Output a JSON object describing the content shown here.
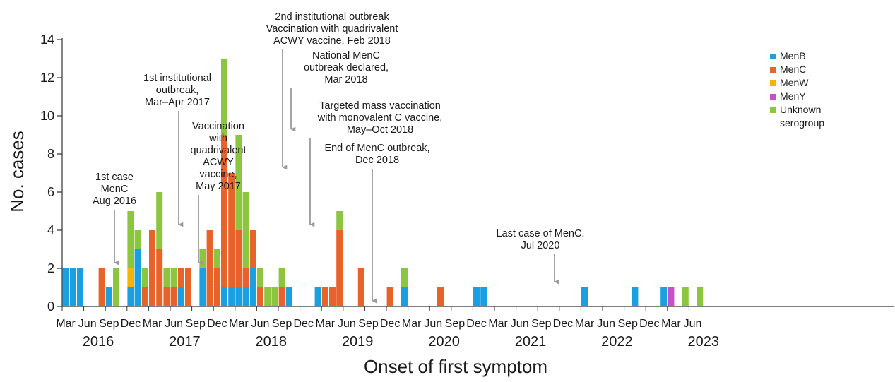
{
  "chart_data": {
    "type": "bar",
    "stacked": true,
    "xlabel": "Onset of first symptom",
    "ylabel": "No. cases",
    "ylim": [
      0,
      14
    ],
    "yticks": [
      0,
      2,
      4,
      6,
      8,
      10,
      12,
      14
    ],
    "x_start": "2016-03",
    "x_end": "2023-07",
    "month_ticks": [
      "Mar",
      "Jun",
      "Sep",
      "Dec",
      "Mar",
      "Jun",
      "Sep",
      "Dec",
      "Mar",
      "Jun",
      "Sep",
      "Dec",
      "Mar",
      "Jun",
      "Sep",
      "Dec",
      "Mar",
      "Jun",
      "Sep",
      "Dec",
      "Mar",
      "Jun",
      "Sep",
      "Dec",
      "Mar",
      "Jun",
      "Sep",
      "Dec",
      "Mar",
      "Jun"
    ],
    "years": [
      "2016",
      "2017",
      "2018",
      "2019",
      "2020",
      "2021",
      "2022",
      "2023"
    ],
    "colors": {
      "MenB": "#1aa0e0",
      "MenC": "#e8632a",
      "MenW": "#f5b400",
      "MenY": "#c94fc8",
      "Unknown": "#8cc63f"
    },
    "series": [
      {
        "key": "MenB",
        "name": "MenB"
      },
      {
        "key": "MenC",
        "name": "MenC"
      },
      {
        "key": "MenW",
        "name": "MenW"
      },
      {
        "key": "MenY",
        "name": "MenY"
      },
      {
        "key": "Unknown",
        "name": "Unknown serogroup"
      }
    ],
    "months": [
      {
        "month": "2016-03",
        "MenB": 2
      },
      {
        "month": "2016-04",
        "MenB": 2
      },
      {
        "month": "2016-05",
        "MenB": 2
      },
      {
        "month": "2016-08",
        "MenC": 2
      },
      {
        "month": "2016-09",
        "MenB": 1
      },
      {
        "month": "2016-10",
        "Unknown": 2
      },
      {
        "month": "2016-12",
        "MenB": 1,
        "MenW": 1,
        "Unknown": 3
      },
      {
        "month": "2017-01",
        "MenB": 3,
        "Unknown": 1
      },
      {
        "month": "2017-02",
        "MenC": 1,
        "Unknown": 1
      },
      {
        "month": "2017-03",
        "MenC": 4
      },
      {
        "month": "2017-04",
        "MenC": 3,
        "Unknown": 3
      },
      {
        "month": "2017-05",
        "MenC": 1,
        "Unknown": 1
      },
      {
        "month": "2017-06",
        "MenC": 1,
        "Unknown": 1
      },
      {
        "month": "2017-07",
        "MenB": 1,
        "MenC": 1
      },
      {
        "month": "2017-08",
        "MenC": 2
      },
      {
        "month": "2017-10",
        "MenB": 2,
        "Unknown": 1
      },
      {
        "month": "2017-11",
        "MenC": 4
      },
      {
        "month": "2017-12",
        "MenC": 2,
        "Unknown": 1
      },
      {
        "month": "2018-01",
        "MenB": 1,
        "MenC": 8,
        "Unknown": 4
      },
      {
        "month": "2018-02",
        "MenB": 1,
        "MenC": 6
      },
      {
        "month": "2018-03",
        "MenB": 1,
        "MenC": 3,
        "Unknown": 5
      },
      {
        "month": "2018-04",
        "MenB": 1,
        "MenC": 1,
        "Unknown": 4
      },
      {
        "month": "2018-05",
        "MenB": 2,
        "MenC": 2
      },
      {
        "month": "2018-06",
        "MenC": 1,
        "Unknown": 1
      },
      {
        "month": "2018-07",
        "Unknown": 1
      },
      {
        "month": "2018-08",
        "Unknown": 1
      },
      {
        "month": "2018-09",
        "MenC": 1,
        "Unknown": 1
      },
      {
        "month": "2018-10",
        "MenB": 1
      },
      {
        "month": "2019-02",
        "MenB": 1
      },
      {
        "month": "2019-03",
        "MenC": 1
      },
      {
        "month": "2019-04",
        "MenC": 1
      },
      {
        "month": "2019-05",
        "MenC": 4,
        "Unknown": 1
      },
      {
        "month": "2019-08",
        "MenC": 2
      },
      {
        "month": "2019-12",
        "MenC": 1
      },
      {
        "month": "2020-02",
        "MenB": 1,
        "Unknown": 1
      },
      {
        "month": "2020-07",
        "MenC": 1
      },
      {
        "month": "2020-12",
        "MenB": 1
      },
      {
        "month": "2021-01",
        "MenB": 1
      },
      {
        "month": "2022-03",
        "MenB": 1
      },
      {
        "month": "2022-10",
        "MenB": 1
      },
      {
        "month": "2023-02",
        "MenB": 1
      },
      {
        "month": "2023-03",
        "MenY": 1
      },
      {
        "month": "2023-05",
        "Unknown": 1
      },
      {
        "month": "2023-07",
        "Unknown": 1
      }
    ],
    "annotations": [
      {
        "lines": [
          "1st case",
          "MenC",
          "Aug 2016"
        ],
        "month": "2016-08",
        "y": 2
      },
      {
        "lines": [
          "1st institutional",
          "outbreak,",
          "Mar–Apr 2017"
        ],
        "month": "2017-03",
        "y": 4
      },
      {
        "lines": [
          "Vaccination",
          "with",
          "quadrivalent",
          "ACWY",
          "vaccine,",
          "May 2017"
        ],
        "month": "2017-05",
        "y": 2
      },
      {
        "lines": [
          "2nd institutional outbreak",
          "Vaccination with quadrivalent",
          "ACWY vaccine, Feb 2018"
        ],
        "month": "2018-02",
        "y": 7
      },
      {
        "lines": [
          "National MenC",
          "outbreak declared,",
          "Mar 2018"
        ],
        "month": "2018-03",
        "y": 9
      },
      {
        "lines": [
          "Targeted mass vaccination",
          "with monovalent C vaccine,",
          "May–Oct 2018"
        ],
        "month": "2018-05",
        "y": 4
      },
      {
        "lines": [
          "End of MenC outbreak,",
          "Dec 2018"
        ],
        "month": "2018-12",
        "y": 0
      },
      {
        "lines": [
          "Last case of MenC,",
          "Jul 2020"
        ],
        "month": "2020-07",
        "y": 1
      }
    ]
  }
}
